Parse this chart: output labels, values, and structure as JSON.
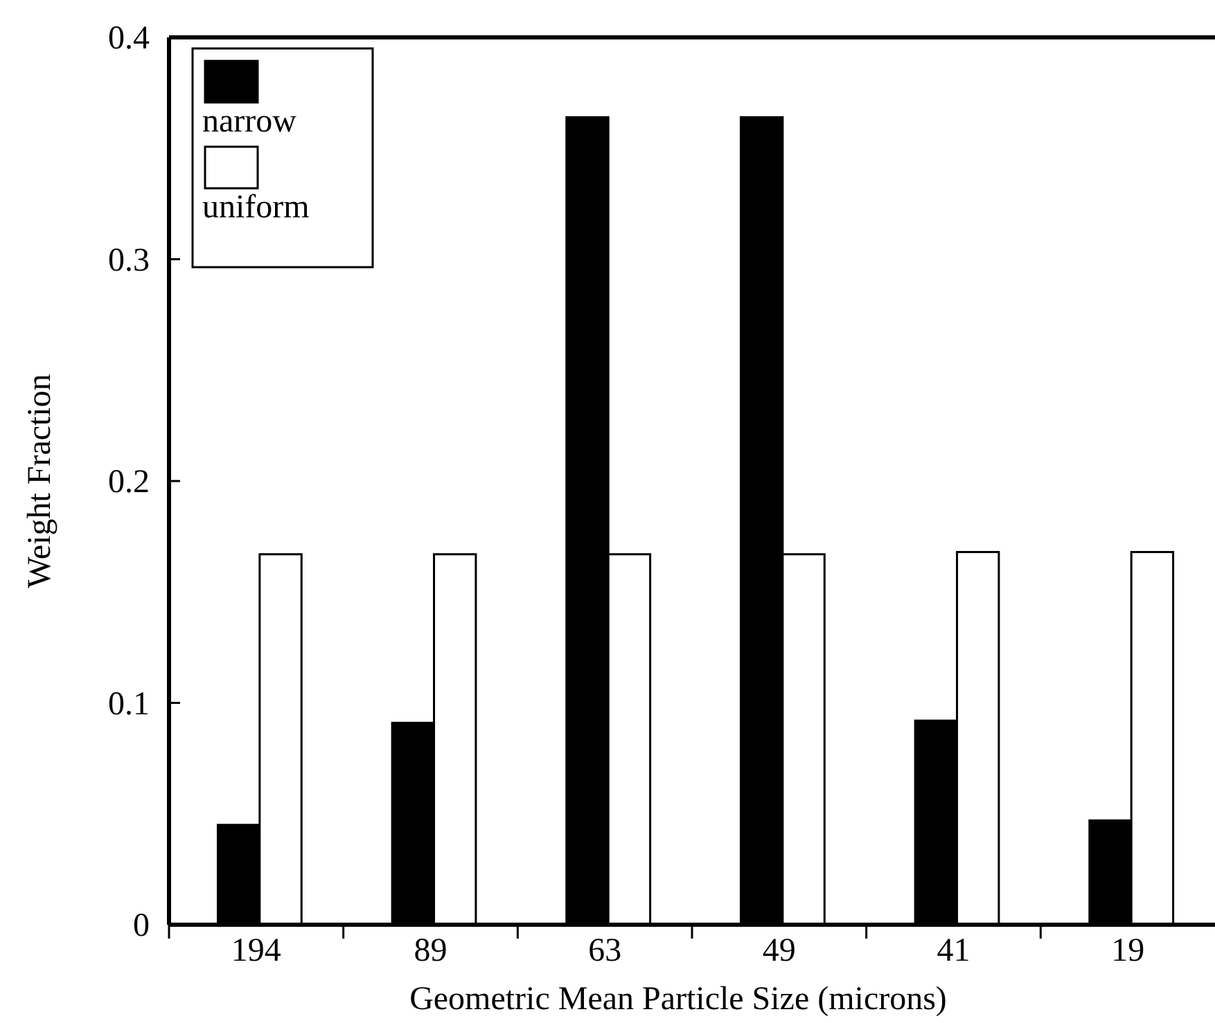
{
  "chart_data": {
    "type": "bar",
    "xlabel": "Geometric Mean Particle Size (microns)",
    "ylabel": "Weight Fraction",
    "categories": [
      "194",
      "89",
      "63",
      "49",
      "41",
      "19"
    ],
    "series": [
      {
        "name": "narrow",
        "color": "#000000",
        "values": [
          0.045,
          0.091,
          0.364,
          0.364,
          0.092,
          0.047
        ]
      },
      {
        "name": "uniform",
        "color": "#ffffff",
        "values": [
          0.167,
          0.167,
          0.167,
          0.167,
          0.168,
          0.168
        ]
      }
    ],
    "ylim": [
      0,
      0.4
    ],
    "yticks": [
      0,
      0.1,
      0.2,
      0.3,
      0.4
    ],
    "legend": "top left",
    "grid": false
  }
}
